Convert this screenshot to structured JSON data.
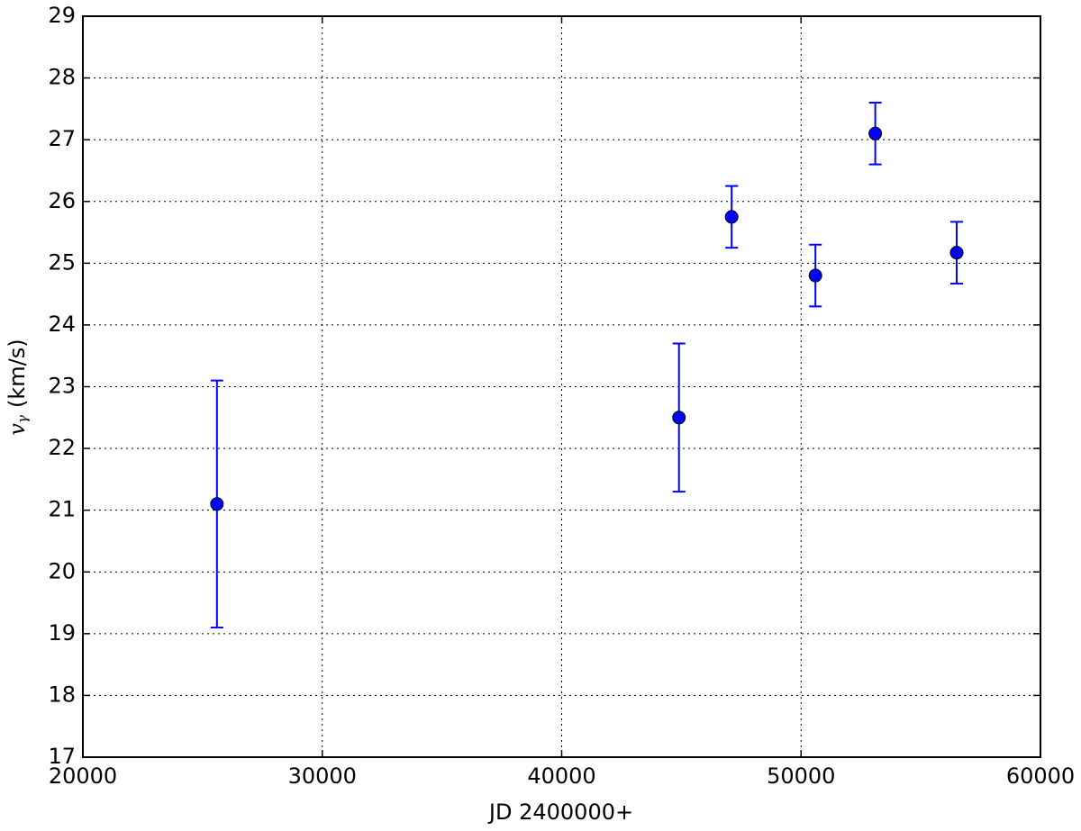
{
  "chart_data": {
    "type": "errorbar",
    "xlabel": "JD 2400000+",
    "ylabel": {
      "symbol": "v",
      "subscript": "γ",
      "unit": "(km/s)"
    },
    "xlim": [
      20000,
      60000
    ],
    "xticks": [
      20000,
      30000,
      40000,
      50000,
      60000
    ],
    "ylim": [
      17,
      29
    ],
    "yticks": [
      17,
      18,
      19,
      20,
      21,
      22,
      23,
      24,
      25,
      26,
      27,
      28,
      29
    ],
    "grid": true,
    "series": [
      {
        "color": "#0000ff",
        "x": [
          25600,
          44900,
          47100,
          50600,
          53100,
          56500
        ],
        "y": [
          21.1,
          22.5,
          25.75,
          24.8,
          27.1,
          25.17
        ],
        "yerr": [
          2.0,
          1.2,
          0.5,
          0.5,
          0.5,
          0.5
        ]
      }
    ]
  }
}
